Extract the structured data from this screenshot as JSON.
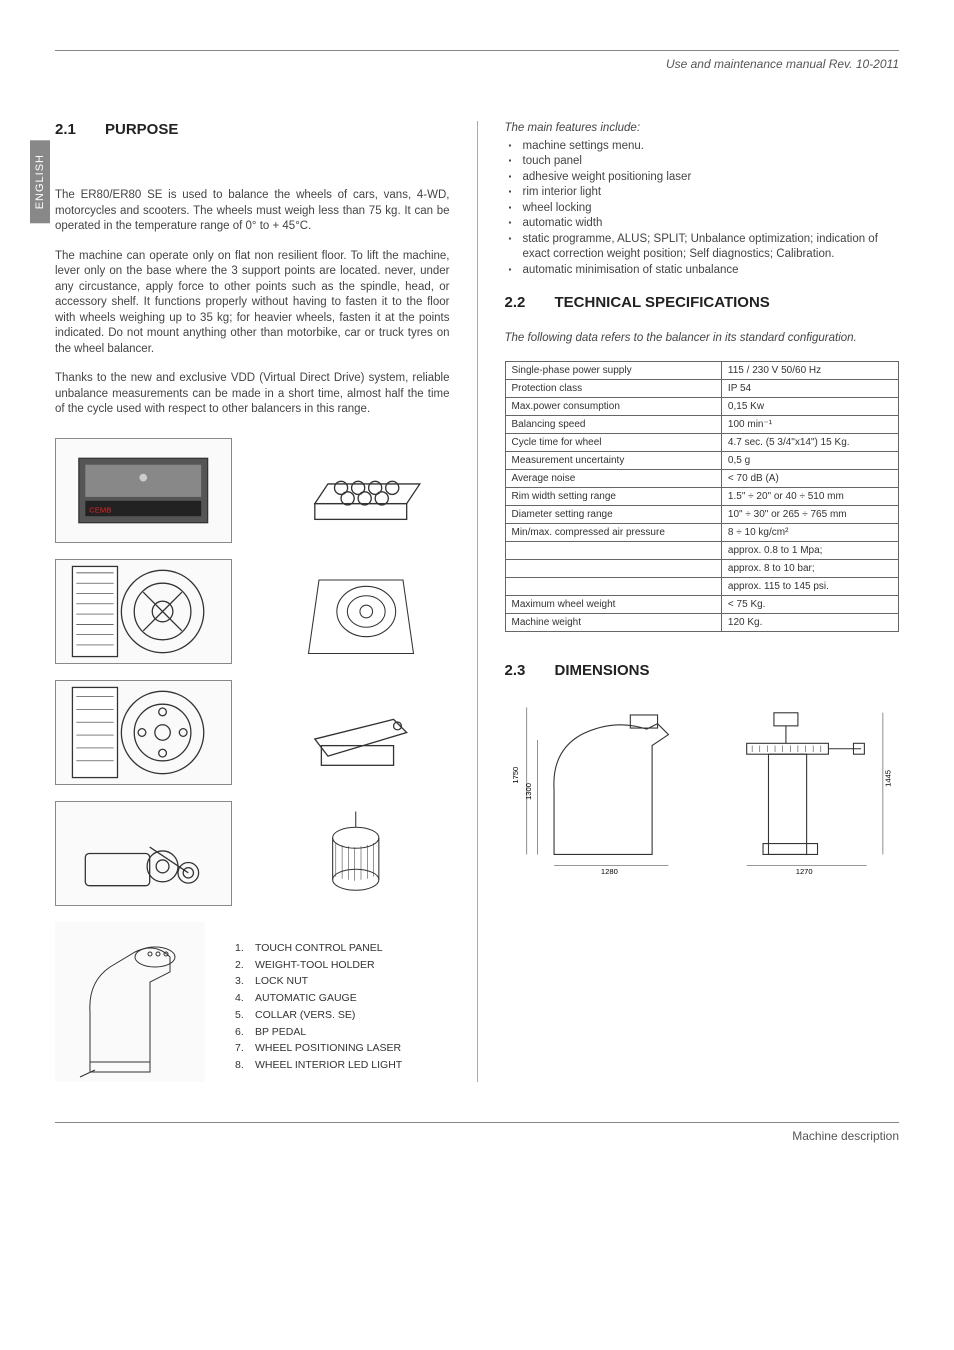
{
  "header": {
    "title": "Use and maintenance manual Rev. 10-2011"
  },
  "side_tab": "ENGLISH",
  "left": {
    "sec_num": "2.1",
    "sec_title": "PURPOSE",
    "p1": "The ER80/ER80 SE is used to balance the wheels of cars, vans, 4-WD, motorcycles and scooters. The wheels must weigh less than 75 kg. It can be operated in the temperature range of 0° to + 45°C.",
    "p2": "The machine can operate only on flat non resilient floor. To lift the machine, lever only on the base where the 3 support points are located. never, under any circustance, apply force to other points such as the spindle, head, or accessory shelf. It functions properly without having to fasten it to the floor with wheels weighing up to 35 kg; for heavier wheels, fasten it at the points indicated. Do not mount anything other than motorbike, car or truck tyres on the wheel balancer.",
    "p3": "Thanks to the new and exclusive VDD (Virtual Direct Drive) system, reliable unbalance measurements can be made in a short time, almost half the time of the cycle used with respect to other balancers in this range.",
    "parts": [
      "TOUCH CONTROL PANEL",
      "WEIGHT-TOOL HOLDER",
      "LOCK NUT",
      "AUTOMATIC GAUGE",
      "COLLAR (VERS. SE)",
      "BP PEDAL",
      "WHEEL POSITIONING LASER",
      "WHEEL INTERIOR LED LIGHT"
    ]
  },
  "right": {
    "features_intro": "The main features include:",
    "features": [
      "machine settings menu.",
      "touch panel",
      "adhesive weight positioning laser",
      "rim interior light",
      "wheel locking",
      "automatic width",
      "static programme, ALUS; SPLIT; Unbalance optimization; indication of exact correction weight position; Self diagnostics; Calibration.",
      "automatic minimisation of static unbalance"
    ],
    "sec22_num": "2.2",
    "sec22_title": "TECHNICAL SPECIFICATIONS",
    "spec_intro": "The following data refers to the balancer in its standard configuration.",
    "spec_rows": [
      [
        "Single-phase power supply",
        "115 / 230 V 50/60 Hz"
      ],
      [
        "Protection class",
        "IP 54"
      ],
      [
        "Max.power consumption",
        "0,15 Kw"
      ],
      [
        "Balancing speed",
        "100 min⁻¹"
      ],
      [
        "Cycle time for wheel",
        "4.7 sec. (5 3/4\"x14\") 15 Kg."
      ],
      [
        "Measurement uncertainty",
        "0,5 g"
      ],
      [
        "Average noise",
        "< 70 dB (A)"
      ],
      [
        "Rim width setting range",
        "1.5\" ÷ 20\" or 40 ÷ 510 mm"
      ],
      [
        "Diameter setting range",
        "10\" ÷ 30\" or 265 ÷ 765 mm"
      ],
      [
        "Min/max. compressed air pressure",
        "8 ÷ 10 kg/cm²"
      ],
      [
        "",
        "approx. 0.8 to 1 Mpa;"
      ],
      [
        "",
        "approx. 8 to 10 bar;"
      ],
      [
        "",
        "approx. 115 to 145 psi."
      ],
      [
        "Maximum wheel weight",
        "< 75 Kg."
      ],
      [
        "Machine weight",
        "120 Kg."
      ]
    ],
    "sec23_num": "2.3",
    "sec23_title": "DIMENSIONS",
    "dims": {
      "front_w": "1280",
      "front_h1": "1750",
      "front_h2": "1300",
      "side_w": "1270",
      "side_h": "1445"
    }
  },
  "footer": "Machine description"
}
